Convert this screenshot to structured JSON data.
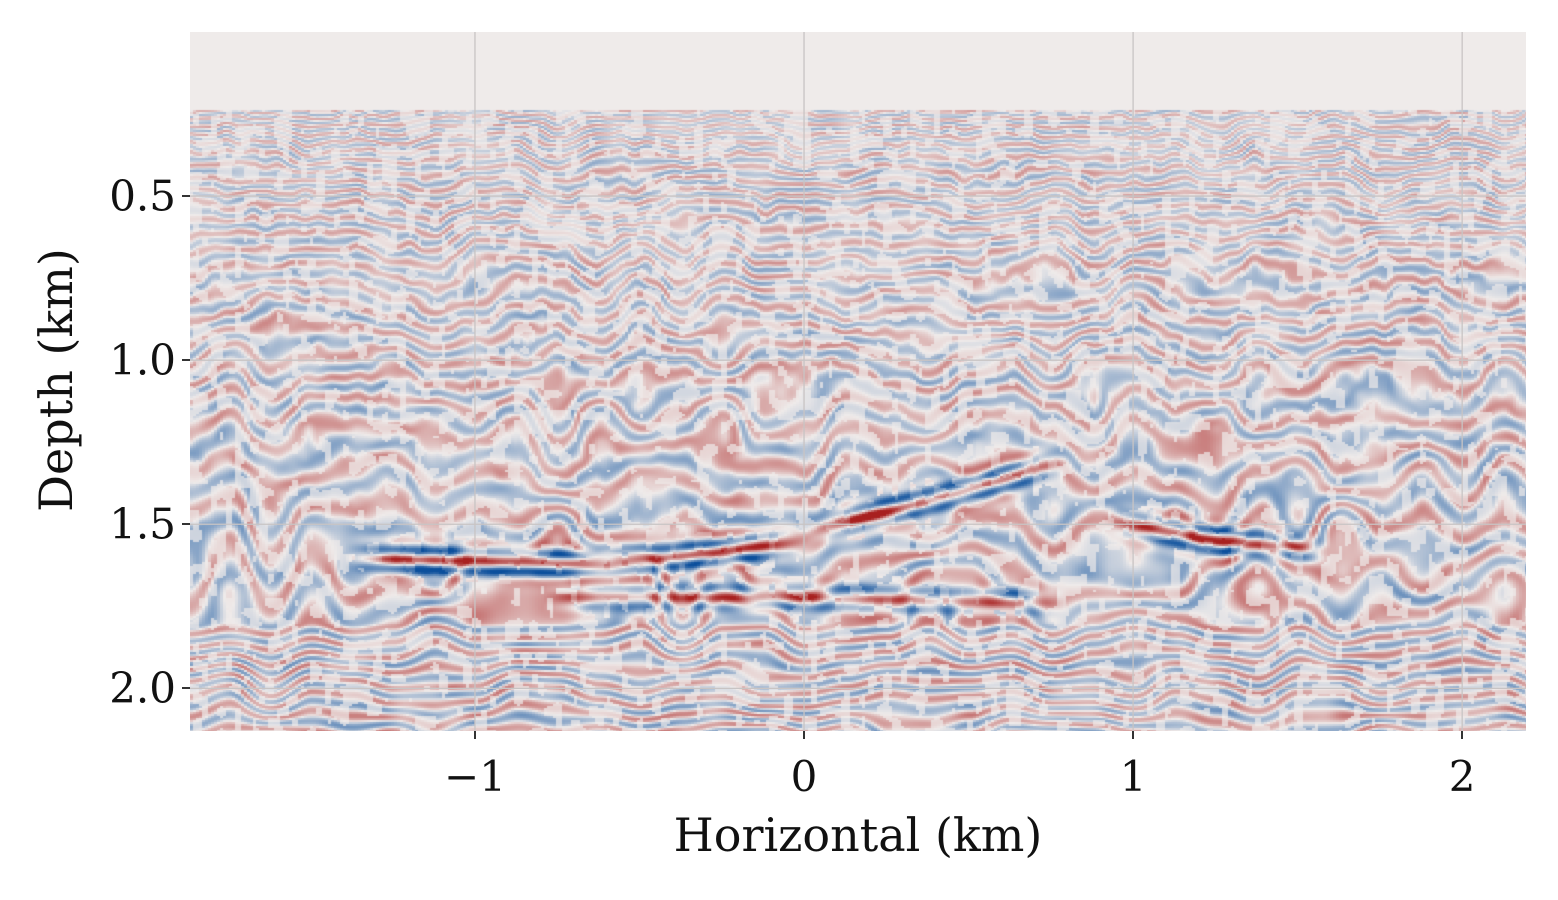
{
  "chart_data": {
    "type": "heatmap",
    "title": "",
    "xlabel": "Horizontal (km)",
    "ylabel": "Depth (km)",
    "xlim": [
      -1.866,
      2.194
    ],
    "ylim": [
      2.13,
      0.0
    ],
    "data_top_depth": 0.233,
    "xticks": [
      {
        "value": -1,
        "label": "−1"
      },
      {
        "value": 0,
        "label": "0"
      },
      {
        "value": 1,
        "label": "1"
      },
      {
        "value": 2,
        "label": "2"
      }
    ],
    "yticks": [
      {
        "value": 0.5,
        "label": "0.5"
      },
      {
        "value": 1.0,
        "label": "1.0"
      },
      {
        "value": 1.5,
        "label": "1.5"
      },
      {
        "value": 2.0,
        "label": "2.0"
      }
    ],
    "grid": true,
    "colormap": {
      "negative": "#0b4f9c",
      "center": "#efebea",
      "positive": "#a8201f"
    },
    "reflectors": [
      {
        "x": [
          -1.4,
          -0.6,
          0.0
        ],
        "depth": [
          1.6,
          1.62,
          1.55
        ],
        "amplitude": 1.0
      },
      {
        "x": [
          0.0,
          0.4,
          0.8
        ],
        "depth": [
          1.52,
          1.42,
          1.3
        ],
        "amplitude": 0.9
      },
      {
        "x": [
          -0.8,
          0.0,
          0.8
        ],
        "depth": [
          1.72,
          1.72,
          1.74
        ],
        "amplitude": 0.6
      },
      {
        "x": [
          0.9,
          1.2,
          1.6
        ],
        "depth": [
          1.48,
          1.54,
          1.58
        ],
        "amplitude": 0.8
      }
    ]
  }
}
